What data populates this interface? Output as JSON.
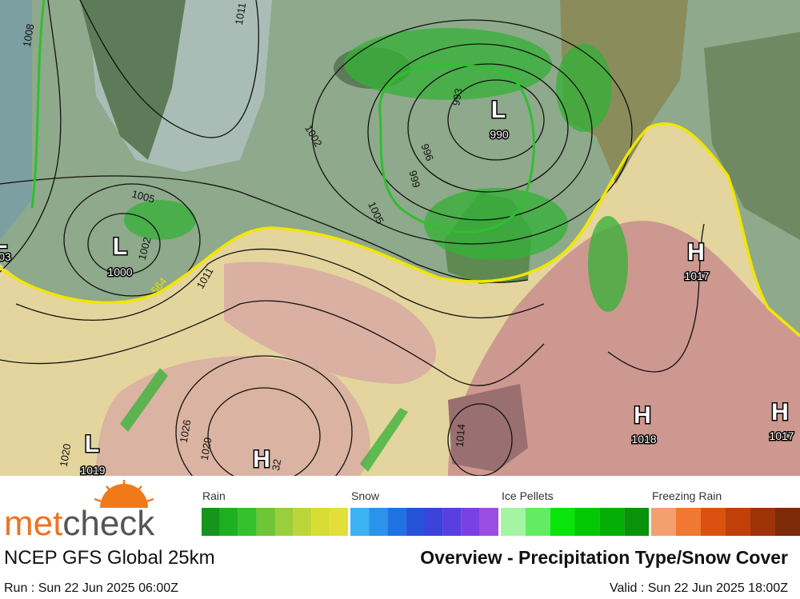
{
  "map": {
    "pressure_centers": [
      {
        "type": "L",
        "value": "990"
      },
      {
        "type": "L",
        "value": "1000"
      },
      {
        "type": "H",
        "value": "1017"
      },
      {
        "type": "H",
        "value": "1018"
      },
      {
        "type": "H",
        "value": "1017"
      },
      {
        "type": "L",
        "value": "1019"
      },
      {
        "type": "H",
        "value": "32"
      },
      {
        "type": "L",
        "value": "03"
      }
    ],
    "isobar_labels": [
      "1008",
      "1011",
      "993",
      "1002",
      "996",
      "999",
      "1005",
      "1002",
      "1005",
      "1011",
      "564",
      "1014",
      "1026",
      "1029",
      "1020"
    ]
  },
  "logo": {
    "part1": "met",
    "part2": "check"
  },
  "legend": [
    {
      "label": "Rain",
      "colors": [
        "#17941b",
        "#1eb020",
        "#35c12e",
        "#6cc637",
        "#98cf3b",
        "#bcd63a",
        "#d8dd33",
        "#e3de3a"
      ]
    },
    {
      "label": "Snow",
      "colors": [
        "#3cb2f2",
        "#2c93ea",
        "#1f72e2",
        "#2553d8",
        "#3b43dc",
        "#5a3fe0",
        "#7a41e2",
        "#9b4fe2"
      ]
    },
    {
      "label": "Ice Pellets",
      "colors": [
        "#a3f5a3",
        "#63ec63",
        "#0be40b",
        "#05c805",
        "#04ae04",
        "#0a920a"
      ]
    },
    {
      "label": "Freezing Rain",
      "colors": [
        "#f4a06e",
        "#f07830",
        "#db5210",
        "#bf4008",
        "#9e3308",
        "#7d2a08"
      ]
    }
  ],
  "footer": {
    "model": "NCEP GFS Global 25km",
    "title": "Overview - Precipitation Type/Snow Cover",
    "run": "Run : Sun 22 Jun 2025 06:00Z",
    "valid": "Valid : Sun 22 Jun 2025 18:00Z"
  }
}
